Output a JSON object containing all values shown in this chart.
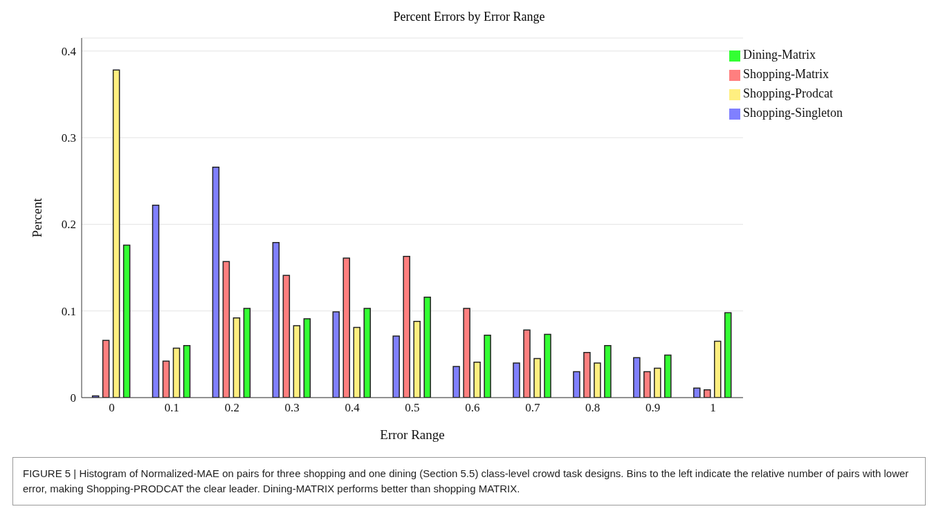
{
  "chart_data": {
    "type": "bar",
    "title": "Percent Errors by Error Range",
    "xlabel": "Error Range",
    "ylabel": "Percent",
    "categories": [
      "0",
      "0.1",
      "0.2",
      "0.3",
      "0.4",
      "0.5",
      "0.6",
      "0.7",
      "0.8",
      "0.9",
      "1"
    ],
    "series": [
      {
        "name": "Shopping-Singleton",
        "color": "#8080ff",
        "values": [
          0.002,
          0.222,
          0.266,
          0.179,
          0.099,
          0.071,
          0.036,
          0.04,
          0.03,
          0.046,
          0.011
        ]
      },
      {
        "name": "Shopping-Matrix",
        "color": "#ff7f7f",
        "values": [
          0.066,
          0.042,
          0.157,
          0.141,
          0.161,
          0.163,
          0.103,
          0.078,
          0.052,
          0.03,
          0.009
        ]
      },
      {
        "name": "Shopping-Prodcat",
        "color": "#ffef80",
        "values": [
          0.378,
          0.057,
          0.092,
          0.083,
          0.081,
          0.088,
          0.041,
          0.045,
          0.04,
          0.034,
          0.065
        ]
      },
      {
        "name": "Dining-Matrix",
        "color": "#33ff33",
        "values": [
          0.176,
          0.06,
          0.103,
          0.091,
          0.103,
          0.116,
          0.072,
          0.073,
          0.06,
          0.049,
          0.098
        ]
      }
    ],
    "ylim": [
      0,
      0.415
    ],
    "yticks": [
      0,
      0.1,
      0.2,
      0.3,
      0.4
    ],
    "grid": "y",
    "legend": "top right",
    "annotations": [
      "FIGURE 5 | Histogram of Normalized-MAE on pairs for three shopping and one dining (Section 5.5) class-level crowd task designs. Bins to the left indicate the relative number of pairs with lower error, making Shopping-PRODCAT the clear leader. Dining-MATRIX performs better than shopping MATRIX."
    ]
  }
}
